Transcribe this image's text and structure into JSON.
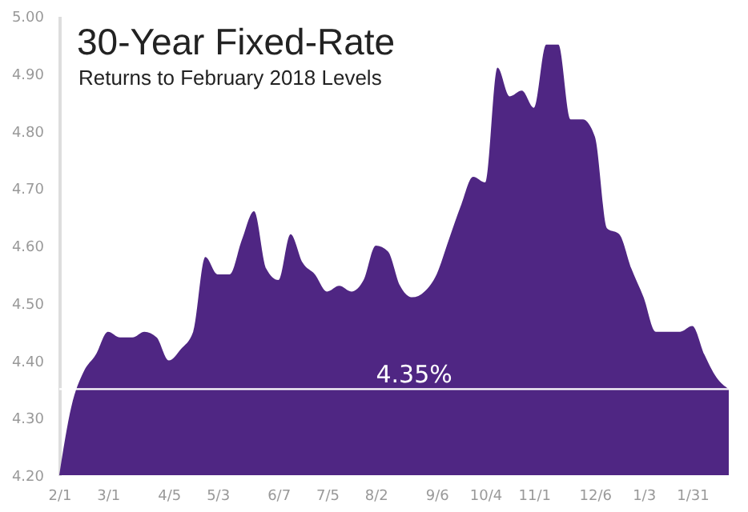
{
  "chart_data": {
    "type": "area",
    "title": "30-Year Fixed-Rate",
    "subtitle": "Returns to February 2018 Levels",
    "categories": [
      "2/1",
      null,
      null,
      null,
      "3/1",
      null,
      null,
      null,
      null,
      "4/5",
      null,
      null,
      null,
      "5/3",
      null,
      null,
      null,
      null,
      "6/7",
      null,
      null,
      null,
      "7/5",
      null,
      null,
      null,
      "8/2",
      null,
      null,
      null,
      null,
      "9/6",
      null,
      null,
      null,
      "10/4",
      null,
      null,
      null,
      "11/1",
      null,
      null,
      null,
      null,
      "12/6",
      null,
      null,
      null,
      "1/3",
      null,
      null,
      null,
      "1/31",
      null,
      null,
      null
    ],
    "series": [
      {
        "color": "#4f2683",
        "values": [
          4.2,
          4.32,
          4.38,
          4.41,
          4.45,
          4.44,
          4.44,
          4.45,
          4.44,
          4.4,
          4.42,
          4.45,
          4.58,
          4.55,
          4.55,
          4.61,
          4.66,
          4.56,
          4.54,
          4.62,
          4.57,
          4.55,
          4.52,
          4.53,
          4.52,
          4.54,
          4.6,
          4.59,
          4.53,
          4.51,
          4.52,
          4.55,
          4.61,
          4.67,
          4.72,
          4.71,
          4.91,
          4.86,
          4.87,
          4.84,
          4.95,
          4.95,
          4.82,
          4.82,
          4.79,
          4.63,
          4.62,
          4.56,
          4.51,
          4.45,
          4.45,
          4.45,
          4.46,
          4.41,
          4.37,
          4.35
        ]
      }
    ],
    "ylim": [
      4.2,
      5.0
    ],
    "yticks": [
      {
        "value": 4.2,
        "label": "4.20"
      },
      {
        "value": 4.3,
        "label": "4.30"
      },
      {
        "value": 4.4,
        "label": "4.40"
      },
      {
        "value": 4.5,
        "label": "4.50"
      },
      {
        "value": 4.6,
        "label": "4.60"
      },
      {
        "value": 4.7,
        "label": "4.70"
      },
      {
        "value": 4.8,
        "label": "4.80"
      },
      {
        "value": 4.9,
        "label": "4.90"
      },
      {
        "value": 5.0,
        "label": "5.00"
      }
    ],
    "ref_lines": [
      {
        "axis": "y",
        "value": 4.35,
        "label": "4.35%",
        "color": "#ffffff"
      }
    ],
    "grid": false
  }
}
